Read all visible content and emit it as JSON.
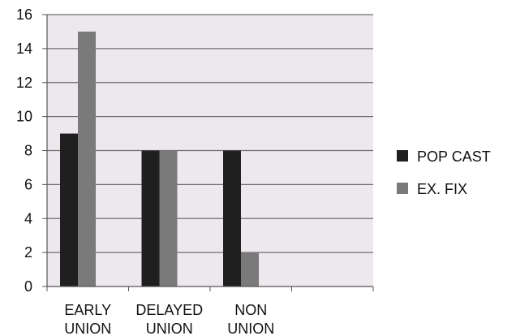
{
  "chart_data": {
    "type": "bar",
    "categories": [
      [
        "EARLY",
        "UNION"
      ],
      [
        "DELAYED",
        "UNION"
      ],
      [
        "NON",
        "UNION"
      ],
      [
        "",
        ""
      ]
    ],
    "series": [
      {
        "name": "POP CAST",
        "values": [
          9,
          8,
          8,
          null
        ],
        "color": "#1f1f1f"
      },
      {
        "name": "EX. FIX",
        "values": [
          15,
          8,
          2,
          null
        ],
        "color": "#7a7a7a"
      }
    ],
    "title": "",
    "xlabel": "",
    "ylabel": "",
    "ylim": [
      0,
      16
    ],
    "y_ticks": [
      0,
      2,
      4,
      6,
      8,
      10,
      12,
      14,
      16
    ],
    "grid": true,
    "plot_background": "#ede8ed",
    "legend_position": "right"
  }
}
